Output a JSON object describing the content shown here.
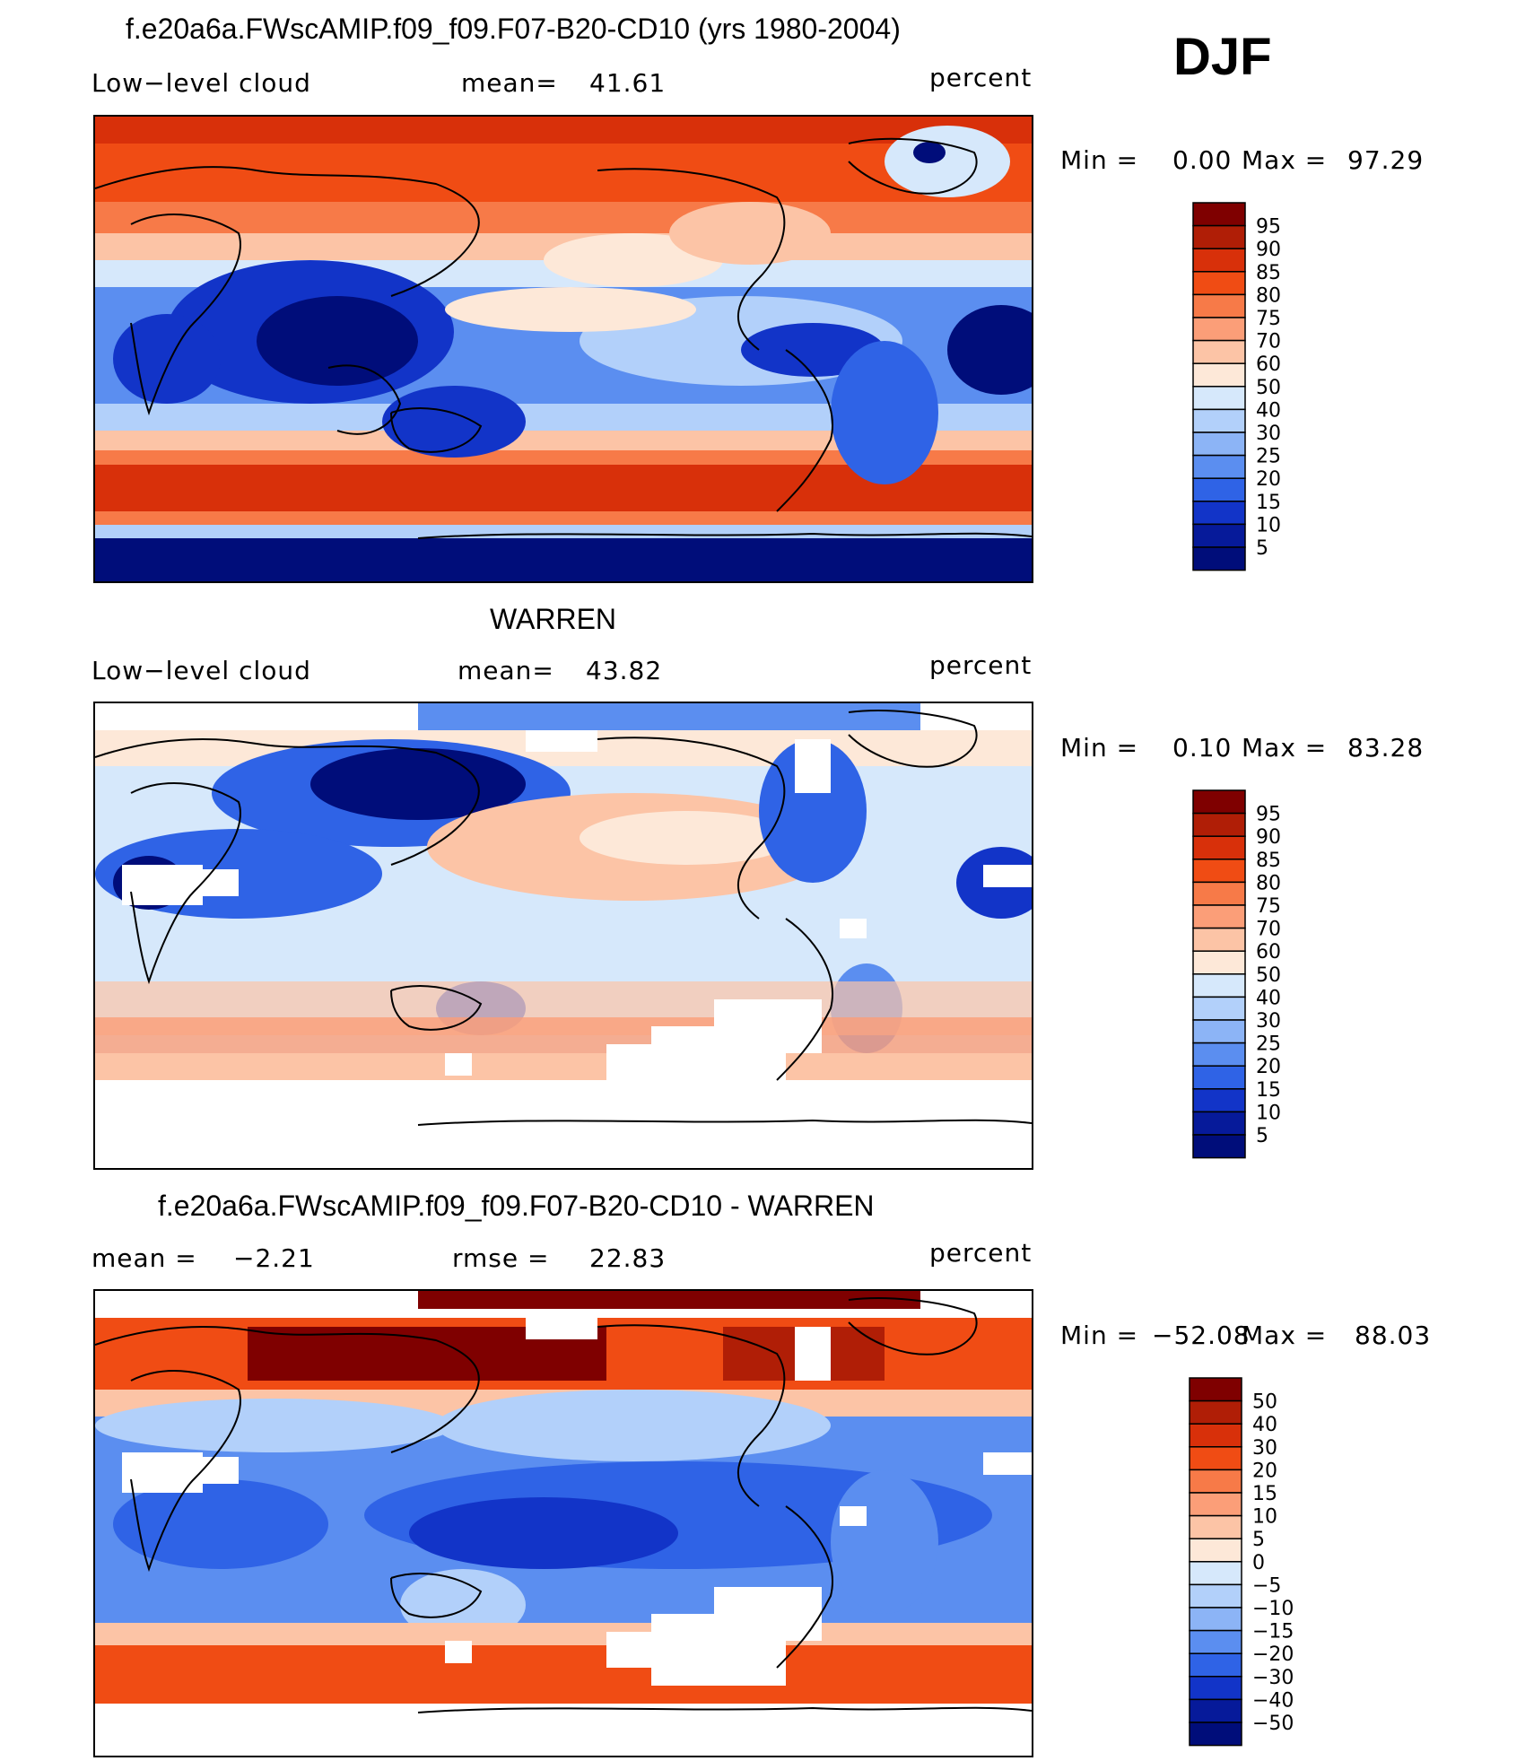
{
  "season": "DJF",
  "units": "percent",
  "panels": [
    {
      "id": "model",
      "title": "f.e20a6a.FWscAMIP.f09_f09.F07-B20-CD10 (yrs 1980-2004)",
      "left_label": "Low−level cloud",
      "stat_label": "mean=",
      "stat_value": "41.61",
      "units": "percent",
      "min_label": "Min =",
      "min_value": "0.00",
      "max_label": "Max =",
      "max_value": "97.29",
      "colorbar_labels": [
        "95",
        "90",
        "85",
        "80",
        "75",
        "70",
        "60",
        "50",
        "40",
        "30",
        "25",
        "20",
        "15",
        "10",
        "5"
      ]
    },
    {
      "id": "obs",
      "title": "WARREN",
      "left_label": "Low−level cloud",
      "stat_label": "mean=",
      "stat_value": "43.82",
      "units": "percent",
      "min_label": "Min =",
      "min_value": "0.10",
      "max_label": "Max =",
      "max_value": "83.28",
      "colorbar_labels": [
        "95",
        "90",
        "85",
        "80",
        "75",
        "70",
        "60",
        "50",
        "40",
        "30",
        "25",
        "20",
        "15",
        "10",
        "5"
      ]
    },
    {
      "id": "diff",
      "title": "f.e20a6a.FWscAMIP.f09_f09.F07-B20-CD10 - WARREN",
      "left_label": "mean =",
      "left_value": "−2.21",
      "stat_label": "rmse =",
      "stat_value": "22.83",
      "units": "percent",
      "min_label": "Min =",
      "min_value": "−52.08",
      "max_label": "Max =",
      "max_value": "88.03",
      "colorbar_labels": [
        "50",
        "40",
        "30",
        "20",
        "15",
        "10",
        "5",
        "0",
        "−5",
        "−10",
        "−15",
        "−20",
        "−30",
        "−40",
        "−50"
      ]
    }
  ],
  "colors": {
    "scale": [
      "#7f0000",
      "#b01e06",
      "#d8300a",
      "#f04c14",
      "#f77a48",
      "#fb9e78",
      "#fcc4a6",
      "#fde8d8",
      "#d6e8fb",
      "#b2d0fa",
      "#8cb4f6",
      "#5b8ef0",
      "#2f63e6",
      "#1234c8",
      "#061a9a",
      "#000d7a"
    ],
    "land_outline": "#000000",
    "missing": "#ffffff"
  }
}
